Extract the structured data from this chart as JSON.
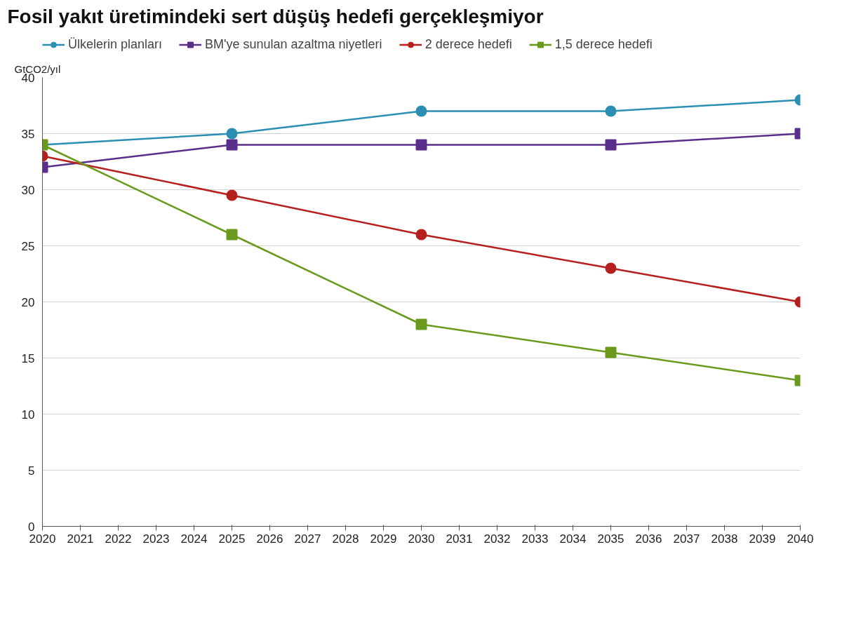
{
  "chart_data": {
    "type": "line",
    "title": "Fosil yakıt üretimindeki sert düşüş hedefi gerçekleşmiyor",
    "ylabel": "GtCO2/yıl",
    "x": [
      2020,
      2025,
      2030,
      2035,
      2040
    ],
    "series": [
      {
        "name": "Ülkelerin planları",
        "color": "#2b8fb3",
        "marker": "circle",
        "values": [
          34,
          35,
          37,
          37,
          38
        ]
      },
      {
        "name": "BM'ye sunulan azaltma niyetleri",
        "color": "#5b2e8c",
        "marker": "square",
        "values": [
          32,
          34,
          34,
          34,
          35
        ]
      },
      {
        "name": "2 derece hedefi",
        "color": "#b5201f",
        "marker": "circle",
        "values": [
          33,
          29.5,
          26,
          23,
          20
        ]
      },
      {
        "name": "1,5 derece hedefi",
        "color": "#6a9a1c",
        "marker": "square",
        "values": [
          34,
          26,
          18,
          15.5,
          13
        ]
      }
    ],
    "xlim": [
      2020,
      2040
    ],
    "xticks": [
      2020,
      2021,
      2022,
      2023,
      2024,
      2025,
      2026,
      2027,
      2028,
      2029,
      2030,
      2031,
      2032,
      2033,
      2034,
      2035,
      2036,
      2037,
      2038,
      2039,
      2040
    ],
    "ylim": [
      0,
      40
    ],
    "yticks": [
      0,
      5,
      10,
      15,
      20,
      25,
      30,
      35,
      40
    ],
    "grid": "y",
    "legend": "top",
    "line_style": "solid"
  }
}
